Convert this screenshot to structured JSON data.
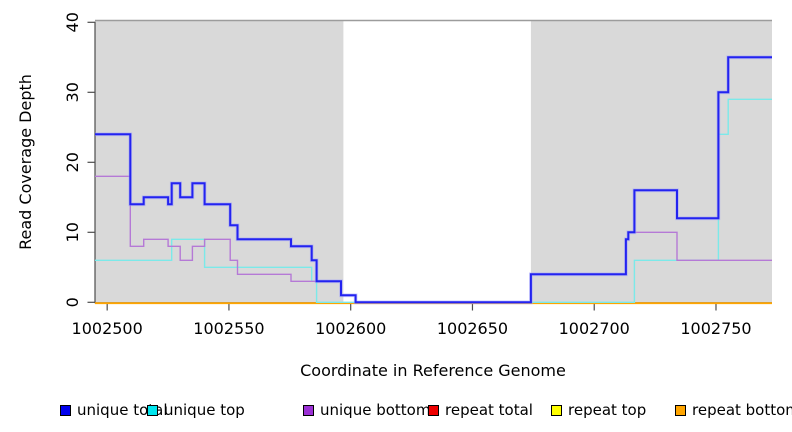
{
  "chart_data": {
    "type": "line",
    "subtype": "step",
    "title": "",
    "xlabel": "Coordinate in Reference Genome",
    "ylabel": "Read Coverage Depth",
    "xlim": [
      1002495,
      1002773
    ],
    "ylim": [
      0,
      40
    ],
    "x_ticks": [
      1002500,
      1002550,
      1002600,
      1002650,
      1002700,
      1002750
    ],
    "y_ticks": [
      0,
      10,
      20,
      30,
      40
    ],
    "grid": false,
    "legend_position": "bottom",
    "colors": {
      "shading": "#d9d9d9",
      "top_border": "#9c9c9c",
      "axis": "#4d4d4d"
    },
    "background_bands": [
      {
        "x0": 1002495,
        "x1": 1002597,
        "color": "#d9d9d9"
      },
      {
        "x0": 1002674,
        "x1": 1002773,
        "color": "#d9d9d9"
      }
    ],
    "series": [
      {
        "label": "unique total",
        "color": "#2323f0",
        "halo_color": "#9b9bfb",
        "legend_color": "#0000ee",
        "steps": [
          [
            1002495,
            24
          ],
          [
            1002509.5,
            14
          ],
          [
            1002515,
            15
          ],
          [
            1002525,
            14
          ],
          [
            1002526.5,
            17
          ],
          [
            1002530,
            15
          ],
          [
            1002535,
            17
          ],
          [
            1002540,
            14
          ],
          [
            1002550.5,
            11
          ],
          [
            1002553.5,
            9
          ],
          [
            1002575.5,
            8
          ],
          [
            1002584,
            6
          ],
          [
            1002586,
            3
          ],
          [
            1002596,
            1
          ],
          [
            1002602,
            0
          ],
          [
            1002674,
            4
          ],
          [
            1002713,
            9
          ],
          [
            1002714,
            10
          ],
          [
            1002716.5,
            16
          ],
          [
            1002734,
            12
          ],
          [
            1002751,
            30
          ],
          [
            1002755,
            35
          ]
        ]
      },
      {
        "label": "unique top",
        "color": "#7be9e9",
        "halo_color": "",
        "legend_color": "#00e5ee",
        "steps": [
          [
            1002495,
            6
          ],
          [
            1002526.5,
            9
          ],
          [
            1002540,
            5
          ],
          [
            1002584,
            3
          ],
          [
            1002586,
            0
          ],
          [
            1002716.5,
            6
          ],
          [
            1002751,
            24
          ],
          [
            1002755,
            29
          ]
        ]
      },
      {
        "label": "unique bottom",
        "color": "#b579d6",
        "halo_color": "",
        "legend_color": "#9b30d5",
        "steps": [
          [
            1002495,
            18
          ],
          [
            1002509.5,
            8
          ],
          [
            1002515,
            9
          ],
          [
            1002525,
            8
          ],
          [
            1002530,
            6
          ],
          [
            1002535,
            8
          ],
          [
            1002540,
            9
          ],
          [
            1002550.5,
            6
          ],
          [
            1002553.5,
            4
          ],
          [
            1002575.5,
            3
          ],
          [
            1002596,
            1
          ],
          [
            1002602,
            0
          ],
          [
            1002674,
            4
          ],
          [
            1002713,
            9
          ],
          [
            1002714,
            10
          ],
          [
            1002734,
            6
          ]
        ]
      },
      {
        "label": "repeat total",
        "color": "#e60000",
        "halo_color": "",
        "legend_color": "#ee0000",
        "steps": [
          [
            1002495,
            0
          ]
        ]
      },
      {
        "label": "repeat top",
        "color": "#ffff00",
        "halo_color": "",
        "legend_color": "#ffff00",
        "steps": [
          [
            1002495,
            0
          ]
        ]
      },
      {
        "label": "repeat bottom",
        "color": "#ffa500",
        "halo_color": "",
        "legend_color": "#ffa500",
        "steps": [
          [
            1002495,
            0
          ]
        ]
      }
    ],
    "draw_order": [
      "repeat total",
      "repeat top",
      "repeat bottom",
      "unique top",
      "unique bottom",
      "unique total"
    ]
  }
}
